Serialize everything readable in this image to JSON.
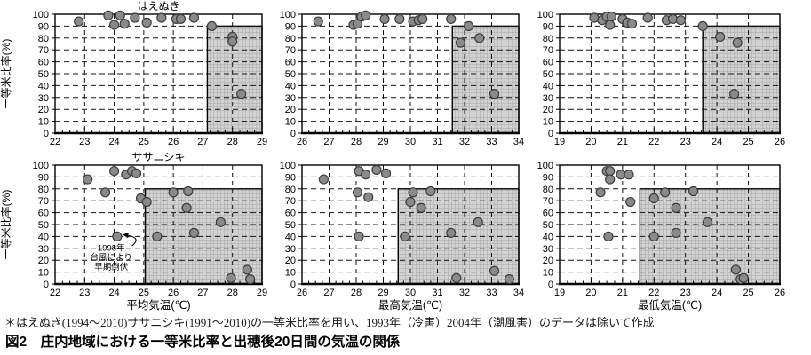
{
  "figure": {
    "note": "＊はえぬき(1994～2010)ササニシキ(1991～2010)の一等米比率を用い、1993年（冷害）2004年（潮風害）のデータは除いて作成",
    "title": "図2　庄内地域における一等米比率と出穂後20日間の気温の関係"
  },
  "colors": {
    "point_fill": "#8a8a8a",
    "point_stroke": "#3d3d3d",
    "shade_fill": "#d2d2d2",
    "shade_grid": "#a6a6a6",
    "axis": "#000000",
    "gridline": "#141414"
  },
  "chart_data": [
    {
      "type": "scatter",
      "title": "はえぬき",
      "xlabel": "",
      "ylabel": "一等米比率(%)",
      "xlim": [
        22,
        29
      ],
      "xstep": 1,
      "x_minor_step": 0.25,
      "ylim": [
        0,
        100
      ],
      "ystep": 10,
      "grid": "dashed",
      "legend": "none",
      "shaded_region": {
        "x_start": 27.15,
        "y_max": 90
      },
      "points": [
        [
          22.8,
          94
        ],
        [
          23.8,
          99
        ],
        [
          24.0,
          91
        ],
        [
          24.2,
          99
        ],
        [
          24.35,
          92
        ],
        [
          24.7,
          97
        ],
        [
          25.1,
          93
        ],
        [
          25.6,
          97
        ],
        [
          26.1,
          96
        ],
        [
          26.25,
          96
        ],
        [
          26.7,
          97
        ],
        [
          27.3,
          90
        ],
        [
          28.0,
          81
        ],
        [
          28.0,
          77
        ],
        [
          28.3,
          33
        ]
      ]
    },
    {
      "type": "scatter",
      "title": "",
      "xlabel": "",
      "ylabel": "",
      "xlim": [
        26,
        34
      ],
      "xstep": 1,
      "x_minor_step": 0.25,
      "ylim": [
        0,
        100
      ],
      "ystep": 10,
      "grid": "dashed",
      "legend": "none",
      "shaded_region": {
        "x_start": 31.55,
        "y_max": 90
      },
      "points": [
        [
          26.6,
          94
        ],
        [
          27.9,
          91
        ],
        [
          28.05,
          92
        ],
        [
          28.2,
          98
        ],
        [
          28.35,
          99
        ],
        [
          29.05,
          96
        ],
        [
          29.6,
          96
        ],
        [
          30.1,
          94
        ],
        [
          30.3,
          95
        ],
        [
          30.45,
          96
        ],
        [
          31.5,
          96
        ],
        [
          32.15,
          90
        ],
        [
          31.85,
          76
        ],
        [
          32.55,
          80
        ],
        [
          33.1,
          33
        ]
      ]
    },
    {
      "type": "scatter",
      "title": "",
      "xlabel": "",
      "ylabel": "",
      "xlim": [
        19,
        26
      ],
      "xstep": 1,
      "x_minor_step": 0.25,
      "ylim": [
        0,
        100
      ],
      "ystep": 10,
      "grid": "dashed",
      "legend": "none",
      "shaded_region": {
        "x_start": 23.55,
        "y_max": 90
      },
      "points": [
        [
          20.1,
          97
        ],
        [
          20.35,
          95
        ],
        [
          20.5,
          98
        ],
        [
          20.65,
          98
        ],
        [
          20.6,
          91
        ],
        [
          21.0,
          96
        ],
        [
          21.15,
          93
        ],
        [
          21.3,
          92
        ],
        [
          21.8,
          97
        ],
        [
          22.4,
          95
        ],
        [
          22.6,
          96
        ],
        [
          22.85,
          95
        ],
        [
          23.55,
          90
        ],
        [
          24.1,
          81
        ],
        [
          24.65,
          76
        ],
        [
          24.55,
          33
        ]
      ]
    },
    {
      "type": "scatter",
      "title": "ササニシキ",
      "xlabel": "平均気温(℃)",
      "ylabel": "一等米比率(%)",
      "xlim": [
        22,
        29
      ],
      "xstep": 1,
      "x_minor_step": 0.25,
      "ylim": [
        0,
        100
      ],
      "ystep": 10,
      "grid": "dashed",
      "legend": "none",
      "shaded_region": {
        "x_start": 25.05,
        "y_max": 80
      },
      "points": [
        [
          23.1,
          88
        ],
        [
          23.7,
          77
        ],
        [
          24.0,
          95
        ],
        [
          24.1,
          40
        ],
        [
          24.4,
          92
        ],
        [
          24.6,
          95
        ],
        [
          24.75,
          93
        ],
        [
          24.9,
          72
        ],
        [
          25.1,
          69
        ],
        [
          25.45,
          40
        ],
        [
          26.0,
          77
        ],
        [
          26.45,
          64
        ],
        [
          26.5,
          78
        ],
        [
          26.7,
          43
        ],
        [
          27.6,
          52
        ],
        [
          27.95,
          5
        ],
        [
          28.5,
          12
        ],
        [
          28.6,
          4
        ]
      ],
      "annotation": {
        "lines": [
          "1998年",
          "台風により",
          "早期倒伏"
        ],
        "x": 23.9,
        "y_lines": [
          28,
          20,
          12
        ],
        "target_point": [
          24.1,
          40
        ],
        "arrow": {
          "from": [
            24.6,
            32
          ],
          "to": [
            24.3,
            41.5
          ]
        }
      }
    },
    {
      "type": "scatter",
      "title": "",
      "xlabel": "最高気温(℃)",
      "ylabel": "",
      "xlim": [
        26,
        34
      ],
      "xstep": 1,
      "x_minor_step": 0.25,
      "ylim": [
        0,
        100
      ],
      "ystep": 10,
      "grid": "dashed",
      "legend": "none",
      "shaded_region": {
        "x_start": 29.55,
        "y_max": 80
      },
      "points": [
        [
          26.8,
          88
        ],
        [
          28.05,
          77
        ],
        [
          28.1,
          95
        ],
        [
          28.1,
          40
        ],
        [
          28.35,
          92
        ],
        [
          28.45,
          73
        ],
        [
          28.75,
          96
        ],
        [
          29.1,
          93
        ],
        [
          29.8,
          40
        ],
        [
          30.0,
          69
        ],
        [
          30.1,
          77
        ],
        [
          30.4,
          64
        ],
        [
          30.75,
          78
        ],
        [
          31.5,
          43
        ],
        [
          31.7,
          5
        ],
        [
          32.5,
          52
        ],
        [
          33.1,
          11
        ],
        [
          33.65,
          4
        ]
      ]
    },
    {
      "type": "scatter",
      "title": "",
      "xlabel": "最低気温(℃)",
      "ylabel": "",
      "xlim": [
        19,
        26
      ],
      "xstep": 1,
      "x_minor_step": 0.25,
      "ylim": [
        0,
        100
      ],
      "ystep": 10,
      "grid": "dashed",
      "legend": "none",
      "shaded_region": {
        "x_start": 21.55,
        "y_max": 80
      },
      "points": [
        [
          20.3,
          77
        ],
        [
          20.5,
          95
        ],
        [
          20.6,
          95
        ],
        [
          20.6,
          88
        ],
        [
          20.55,
          40
        ],
        [
          20.95,
          92
        ],
        [
          21.2,
          92
        ],
        [
          21.25,
          69
        ],
        [
          22.0,
          72
        ],
        [
          22.0,
          40
        ],
        [
          22.35,
          77
        ],
        [
          22.7,
          64
        ],
        [
          22.7,
          43
        ],
        [
          23.25,
          78
        ],
        [
          23.7,
          52
        ],
        [
          24.6,
          12
        ],
        [
          24.75,
          4
        ],
        [
          24.85,
          5
        ]
      ]
    }
  ]
}
